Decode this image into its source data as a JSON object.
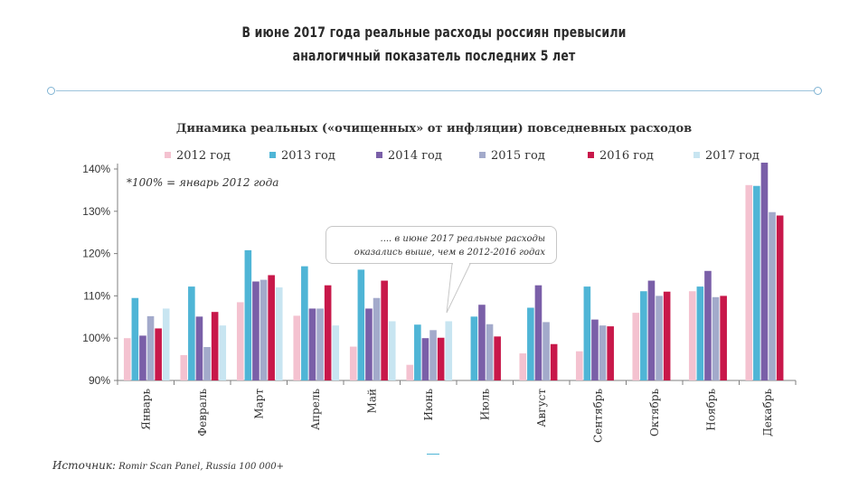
{
  "header": {
    "line1": "В июне 2017 года реальные расходы россиян превысили",
    "line2": "аналогичный показатель последних 5 лет"
  },
  "chart_data": {
    "type": "bar",
    "title": "Динамика реальных («очищенных» от инфляции) повседневных расходов",
    "footnote": "*100% = январь 2012 года",
    "xlabel": "",
    "ylabel": "",
    "ylim": [
      90,
      140
    ],
    "yticks": [
      "90%",
      "100%",
      "110%",
      "120%",
      "130%",
      "140%"
    ],
    "grid": false,
    "legend_position": "top",
    "categories": [
      "Январь",
      "Февраль",
      "Март",
      "Апрель",
      "Май",
      "Июнь",
      "Июль",
      "Август",
      "Сентябрь",
      "Октябрь",
      "Ноябрь",
      "Декабрь"
    ],
    "series": [
      {
        "name": "2012 год",
        "color": "#f4c2d0",
        "values": [
          100,
          96,
          108.5,
          105.3,
          98,
          93.7,
          null,
          96.4,
          96.9,
          106,
          111.1,
          136.2
        ]
      },
      {
        "name": "2013 год",
        "color": "#4fb5d6",
        "values": [
          109.5,
          112.2,
          120.8,
          117,
          116.2,
          103.2,
          105.1,
          107.2,
          112.2,
          111.1,
          112.2,
          136
        ]
      },
      {
        "name": "2014 год",
        "color": "#7a5fa8",
        "values": [
          100.6,
          105.1,
          113.4,
          107,
          107,
          100,
          107.9,
          112.5,
          104.4,
          113.6,
          115.9,
          141.5
        ]
      },
      {
        "name": "2015 год",
        "color": "#a3aacb",
        "values": [
          105.2,
          97.9,
          113.8,
          107,
          109.5,
          101.9,
          103.3,
          103.8,
          103,
          110,
          109.7,
          129.8
        ]
      },
      {
        "name": "2016 год",
        "color": "#c8184a",
        "values": [
          102.3,
          106.2,
          114.9,
          112.5,
          113.6,
          100.1,
          100.4,
          98.6,
          102.8,
          111,
          110,
          129
        ]
      },
      {
        "name": "2017 год",
        "color": "#c8e5f1",
        "values": [
          107,
          103,
          112,
          103,
          104,
          104,
          null,
          null,
          null,
          null,
          null,
          null
        ]
      }
    ],
    "annotation": {
      "line1": ".... в июне 2017 реальные расходы",
      "line2": "оказались выше, чем в 2012-2016 годах"
    }
  },
  "source": {
    "label": "Источник:",
    "text": "Romir Scan Panel, Russia 100 000+"
  }
}
